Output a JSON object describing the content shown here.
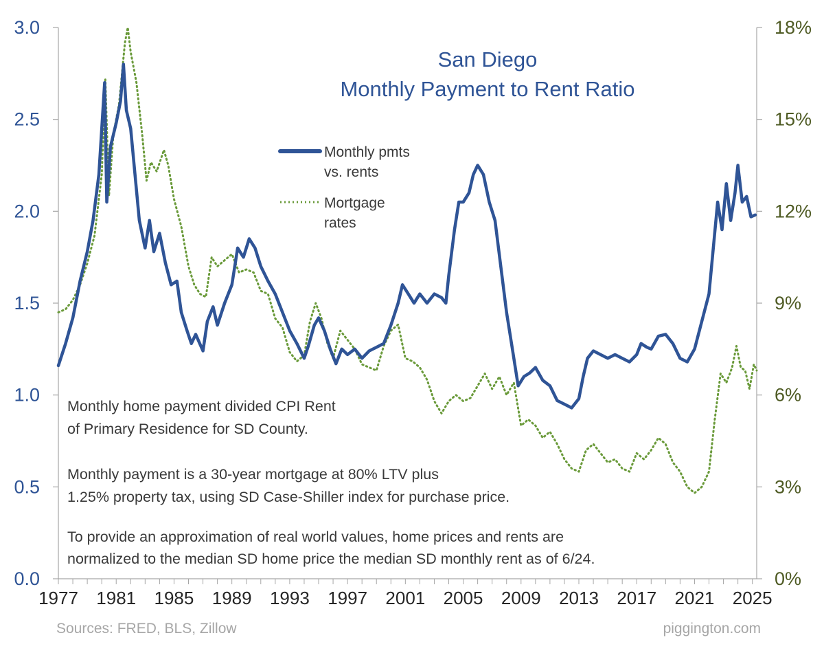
{
  "chart_data": {
    "type": "line",
    "title": [
      "San Diego",
      "Monthly Payment to Rent Ratio"
    ],
    "x_ticks": [
      "1977",
      "1981",
      "1985",
      "1989",
      "1993",
      "1997",
      "2001",
      "2005",
      "2009",
      "2013",
      "2017",
      "2021",
      "2025"
    ],
    "x_range": [
      1977,
      2025.3
    ],
    "y_left": {
      "ticks": [
        "0.0",
        "0.5",
        "1.0",
        "1.5",
        "2.0",
        "2.5",
        "3.0"
      ],
      "range": [
        0,
        3.0
      ]
    },
    "y_right": {
      "ticks": [
        "0%",
        "3%",
        "6%",
        "9%",
        "12%",
        "15%",
        "18%"
      ],
      "range": [
        0,
        18
      ]
    },
    "series": [
      {
        "name": "Monthly pmts vs. rents",
        "axis": "left",
        "color": "#2f5496",
        "style": "solid",
        "points": [
          [
            1977.0,
            1.16
          ],
          [
            1977.5,
            1.28
          ],
          [
            1978.0,
            1.42
          ],
          [
            1978.5,
            1.62
          ],
          [
            1979.0,
            1.78
          ],
          [
            1979.4,
            1.95
          ],
          [
            1979.8,
            2.2
          ],
          [
            1980.2,
            2.7
          ],
          [
            1980.35,
            2.05
          ],
          [
            1980.6,
            2.35
          ],
          [
            1981.0,
            2.48
          ],
          [
            1981.3,
            2.6
          ],
          [
            1981.5,
            2.8
          ],
          [
            1981.7,
            2.55
          ],
          [
            1982.0,
            2.45
          ],
          [
            1982.3,
            2.2
          ],
          [
            1982.6,
            1.95
          ],
          [
            1983.0,
            1.8
          ],
          [
            1983.3,
            1.95
          ],
          [
            1983.6,
            1.78
          ],
          [
            1984.0,
            1.88
          ],
          [
            1984.4,
            1.72
          ],
          [
            1984.8,
            1.6
          ],
          [
            1985.2,
            1.62
          ],
          [
            1985.5,
            1.45
          ],
          [
            1985.9,
            1.35
          ],
          [
            1986.2,
            1.28
          ],
          [
            1986.5,
            1.33
          ],
          [
            1987.0,
            1.24
          ],
          [
            1987.3,
            1.4
          ],
          [
            1987.7,
            1.48
          ],
          [
            1988.0,
            1.38
          ],
          [
            1988.5,
            1.5
          ],
          [
            1989.0,
            1.6
          ],
          [
            1989.4,
            1.8
          ],
          [
            1989.8,
            1.75
          ],
          [
            1990.2,
            1.85
          ],
          [
            1990.6,
            1.8
          ],
          [
            1991.0,
            1.7
          ],
          [
            1991.5,
            1.62
          ],
          [
            1992.0,
            1.55
          ],
          [
            1992.5,
            1.45
          ],
          [
            1993.0,
            1.35
          ],
          [
            1993.5,
            1.28
          ],
          [
            1994.0,
            1.2
          ],
          [
            1994.3,
            1.27
          ],
          [
            1994.7,
            1.38
          ],
          [
            1995.0,
            1.42
          ],
          [
            1995.4,
            1.35
          ],
          [
            1995.8,
            1.25
          ],
          [
            1996.2,
            1.17
          ],
          [
            1996.6,
            1.25
          ],
          [
            1997.0,
            1.22
          ],
          [
            1997.5,
            1.25
          ],
          [
            1998.0,
            1.2
          ],
          [
            1998.5,
            1.24
          ],
          [
            1999.0,
            1.26
          ],
          [
            1999.5,
            1.28
          ],
          [
            2000.0,
            1.38
          ],
          [
            2000.5,
            1.5
          ],
          [
            2000.8,
            1.6
          ],
          [
            2001.2,
            1.55
          ],
          [
            2001.6,
            1.5
          ],
          [
            2002.0,
            1.55
          ],
          [
            2002.5,
            1.5
          ],
          [
            2003.0,
            1.55
          ],
          [
            2003.5,
            1.53
          ],
          [
            2003.8,
            1.5
          ],
          [
            2004.0,
            1.65
          ],
          [
            2004.4,
            1.9
          ],
          [
            2004.7,
            2.05
          ],
          [
            2005.0,
            2.05
          ],
          [
            2005.4,
            2.1
          ],
          [
            2005.7,
            2.2
          ],
          [
            2006.0,
            2.25
          ],
          [
            2006.4,
            2.2
          ],
          [
            2006.8,
            2.05
          ],
          [
            2007.2,
            1.95
          ],
          [
            2007.6,
            1.7
          ],
          [
            2008.0,
            1.45
          ],
          [
            2008.4,
            1.25
          ],
          [
            2008.8,
            1.05
          ],
          [
            2009.2,
            1.1
          ],
          [
            2009.6,
            1.12
          ],
          [
            2010.0,
            1.15
          ],
          [
            2010.5,
            1.08
          ],
          [
            2011.0,
            1.05
          ],
          [
            2011.5,
            0.97
          ],
          [
            2012.0,
            0.95
          ],
          [
            2012.5,
            0.93
          ],
          [
            2013.0,
            0.98
          ],
          [
            2013.3,
            1.1
          ],
          [
            2013.6,
            1.2
          ],
          [
            2014.0,
            1.24
          ],
          [
            2014.5,
            1.22
          ],
          [
            2015.0,
            1.2
          ],
          [
            2015.5,
            1.22
          ],
          [
            2016.0,
            1.2
          ],
          [
            2016.5,
            1.18
          ],
          [
            2017.0,
            1.22
          ],
          [
            2017.3,
            1.28
          ],
          [
            2017.7,
            1.26
          ],
          [
            2018.0,
            1.25
          ],
          [
            2018.5,
            1.32
          ],
          [
            2019.0,
            1.33
          ],
          [
            2019.5,
            1.28
          ],
          [
            2020.0,
            1.2
          ],
          [
            2020.5,
            1.18
          ],
          [
            2021.0,
            1.25
          ],
          [
            2021.5,
            1.4
          ],
          [
            2022.0,
            1.55
          ],
          [
            2022.3,
            1.8
          ],
          [
            2022.6,
            2.05
          ],
          [
            2022.9,
            1.9
          ],
          [
            2023.2,
            2.15
          ],
          [
            2023.5,
            1.95
          ],
          [
            2023.8,
            2.1
          ],
          [
            2024.0,
            2.25
          ],
          [
            2024.3,
            2.05
          ],
          [
            2024.6,
            2.08
          ],
          [
            2024.9,
            1.97
          ],
          [
            2025.2,
            1.98
          ]
        ]
      },
      {
        "name": "Mortgage rates",
        "axis": "right",
        "color": "#6a9a3a",
        "style": "dotted",
        "points": [
          [
            1977.0,
            8.7
          ],
          [
            1977.5,
            8.8
          ],
          [
            1978.0,
            9.1
          ],
          [
            1978.5,
            9.6
          ],
          [
            1979.0,
            10.3
          ],
          [
            1979.5,
            11.2
          ],
          [
            1980.0,
            13.2
          ],
          [
            1980.25,
            16.3
          ],
          [
            1980.5,
            12.5
          ],
          [
            1980.8,
            14.5
          ],
          [
            1981.2,
            15.5
          ],
          [
            1981.6,
            17.5
          ],
          [
            1981.8,
            18.0
          ],
          [
            1982.0,
            17.2
          ],
          [
            1982.4,
            16.2
          ],
          [
            1982.8,
            14.5
          ],
          [
            1983.1,
            13.0
          ],
          [
            1983.4,
            13.6
          ],
          [
            1983.8,
            13.3
          ],
          [
            1984.3,
            14.0
          ],
          [
            1984.6,
            13.5
          ],
          [
            1985.0,
            12.4
          ],
          [
            1985.5,
            11.5
          ],
          [
            1986.0,
            10.2
          ],
          [
            1986.4,
            9.6
          ],
          [
            1986.8,
            9.3
          ],
          [
            1987.2,
            9.2
          ],
          [
            1987.6,
            10.5
          ],
          [
            1988.0,
            10.2
          ],
          [
            1988.5,
            10.4
          ],
          [
            1989.0,
            10.6
          ],
          [
            1989.5,
            10.0
          ],
          [
            1990.0,
            10.1
          ],
          [
            1990.5,
            10.0
          ],
          [
            1991.0,
            9.4
          ],
          [
            1991.5,
            9.3
          ],
          [
            1992.0,
            8.5
          ],
          [
            1992.5,
            8.2
          ],
          [
            1993.0,
            7.4
          ],
          [
            1993.5,
            7.1
          ],
          [
            1994.0,
            7.3
          ],
          [
            1994.4,
            8.4
          ],
          [
            1994.8,
            9.0
          ],
          [
            1995.2,
            8.5
          ],
          [
            1995.6,
            7.7
          ],
          [
            1996.0,
            7.2
          ],
          [
            1996.5,
            8.1
          ],
          [
            1997.0,
            7.8
          ],
          [
            1997.5,
            7.5
          ],
          [
            1998.0,
            7.0
          ],
          [
            1998.5,
            6.9
          ],
          [
            1999.0,
            6.8
          ],
          [
            1999.5,
            7.6
          ],
          [
            2000.0,
            8.1
          ],
          [
            2000.5,
            8.3
          ],
          [
            2001.0,
            7.2
          ],
          [
            2001.5,
            7.1
          ],
          [
            2002.0,
            6.9
          ],
          [
            2002.5,
            6.5
          ],
          [
            2003.0,
            5.8
          ],
          [
            2003.5,
            5.4
          ],
          [
            2004.0,
            5.8
          ],
          [
            2004.5,
            6.0
          ],
          [
            2005.0,
            5.8
          ],
          [
            2005.5,
            5.9
          ],
          [
            2006.0,
            6.3
          ],
          [
            2006.5,
            6.7
          ],
          [
            2007.0,
            6.2
          ],
          [
            2007.5,
            6.6
          ],
          [
            2008.0,
            6.0
          ],
          [
            2008.5,
            6.4
          ],
          [
            2009.0,
            5.0
          ],
          [
            2009.5,
            5.2
          ],
          [
            2010.0,
            5.0
          ],
          [
            2010.5,
            4.6
          ],
          [
            2011.0,
            4.8
          ],
          [
            2011.5,
            4.4
          ],
          [
            2012.0,
            3.9
          ],
          [
            2012.5,
            3.6
          ],
          [
            2013.0,
            3.5
          ],
          [
            2013.5,
            4.2
          ],
          [
            2014.0,
            4.4
          ],
          [
            2014.5,
            4.1
          ],
          [
            2015.0,
            3.8
          ],
          [
            2015.5,
            3.9
          ],
          [
            2016.0,
            3.6
          ],
          [
            2016.5,
            3.5
          ],
          [
            2017.0,
            4.1
          ],
          [
            2017.5,
            3.9
          ],
          [
            2018.0,
            4.2
          ],
          [
            2018.5,
            4.6
          ],
          [
            2019.0,
            4.4
          ],
          [
            2019.5,
            3.8
          ],
          [
            2020.0,
            3.5
          ],
          [
            2020.5,
            3.0
          ],
          [
            2021.0,
            2.8
          ],
          [
            2021.5,
            3.0
          ],
          [
            2022.0,
            3.5
          ],
          [
            2022.4,
            5.2
          ],
          [
            2022.8,
            6.7
          ],
          [
            2023.2,
            6.4
          ],
          [
            2023.6,
            6.9
          ],
          [
            2023.9,
            7.6
          ],
          [
            2024.2,
            6.9
          ],
          [
            2024.5,
            6.8
          ],
          [
            2024.8,
            6.2
          ],
          [
            2025.1,
            7.0
          ],
          [
            2025.3,
            6.8
          ]
        ]
      }
    ],
    "legend": {
      "placement": "upper-center",
      "entries": [
        {
          "lines": [
            "Monthly pmts",
            "vs. rents"
          ]
        },
        {
          "lines": [
            "Mortgage",
            "rates"
          ]
        }
      ]
    },
    "annotations": [
      "Monthly home payment divided CPI Rent",
      "of Primary Residence for SD County.",
      "",
      "Monthly payment is a 30-year mortgage at 80% LTV plus",
      "1.25% property tax, using SD Case-Shiller index for purchase price.",
      "",
      "To provide an approximation of real world values, home prices and rents are",
      "normalized to the median SD home price the median SD monthly rent as of 6/24."
    ],
    "sources": "Sources: FRED, BLS, Zillow",
    "credit": "piggington.com"
  }
}
